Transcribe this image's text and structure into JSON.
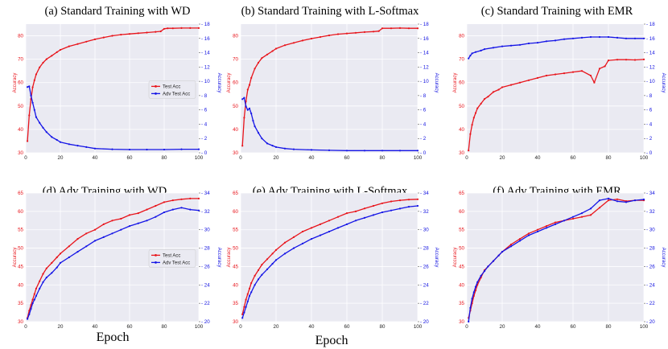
{
  "figure": {
    "x_axis_label": "Epoch"
  },
  "colors": {
    "test": "#e8141b",
    "adv": "#1515e6",
    "plot_bg": "#eaeaf2",
    "grid": "#ffffff"
  },
  "chart_data": [
    {
      "type": "line",
      "title": "(a) Standard Training with WD",
      "xlim": [
        0,
        100
      ],
      "ylim_left": [
        30,
        85
      ],
      "ylim_right": [
        0,
        18
      ],
      "xticks": [
        0,
        20,
        40,
        60,
        80,
        100
      ],
      "yticks_left": [
        30,
        40,
        50,
        60,
        70,
        80
      ],
      "yticks_right": [
        0,
        2,
        4,
        6,
        8,
        10,
        12,
        14,
        16,
        18
      ],
      "ylabel_left": "Accuracy",
      "ylabel_right": "Accuracy",
      "legend": {
        "position": "center-right",
        "entries": [
          "Test Acc",
          "Adv Test Acc"
        ]
      },
      "series": [
        {
          "name": "Test Acc",
          "axis": "left",
          "x": [
            1,
            2,
            3,
            4,
            5,
            6,
            8,
            10,
            12,
            15,
            18,
            20,
            25,
            30,
            35,
            40,
            45,
            50,
            55,
            60,
            65,
            70,
            75,
            78,
            80,
            82,
            85,
            90,
            95,
            100
          ],
          "y": [
            35,
            46,
            53,
            58,
            61,
            63.5,
            66.5,
            68.5,
            70,
            71.5,
            73,
            74,
            75.5,
            76.5,
            77.5,
            78.5,
            79.3,
            80,
            80.5,
            80.8,
            81.1,
            81.4,
            81.7,
            81.9,
            83,
            83.2,
            83.2,
            83.3,
            83.3,
            83.3
          ]
        },
        {
          "name": "Adv Test Acc",
          "axis": "right",
          "x": [
            1,
            2,
            3,
            4,
            5,
            6,
            8,
            10,
            12,
            15,
            18,
            20,
            25,
            30,
            35,
            40,
            50,
            60,
            70,
            80,
            90,
            100
          ],
          "y": [
            9.2,
            9.3,
            8,
            7,
            6,
            5,
            4.2,
            3.5,
            2.9,
            2.2,
            1.8,
            1.5,
            1.2,
            1,
            0.8,
            0.6,
            0.5,
            0.45,
            0.45,
            0.45,
            0.5,
            0.5
          ]
        }
      ]
    },
    {
      "type": "line",
      "title": "(b) Standard Training with L-Softmax",
      "xlim": [
        0,
        100
      ],
      "ylim_left": [
        30,
        85
      ],
      "ylim_right": [
        0,
        18
      ],
      "xticks": [
        0,
        20,
        40,
        60,
        80,
        100
      ],
      "yticks_left": [
        30,
        40,
        50,
        60,
        70,
        80
      ],
      "yticks_right": [
        0,
        2,
        4,
        6,
        8,
        10,
        12,
        14,
        16,
        18
      ],
      "ylabel_left": "Accuracy",
      "ylabel_right": "Accuracy",
      "series": [
        {
          "name": "Test Acc",
          "axis": "left",
          "x": [
            1,
            2,
            3,
            4,
            5,
            6,
            8,
            10,
            12,
            15,
            18,
            20,
            25,
            30,
            35,
            40,
            45,
            50,
            55,
            60,
            65,
            70,
            75,
            78,
            80,
            85,
            90,
            95,
            100
          ],
          "y": [
            33,
            45,
            52,
            57,
            59,
            62,
            66,
            68.5,
            70.5,
            72,
            73.5,
            74.5,
            76,
            77,
            78,
            78.8,
            79.5,
            80.2,
            80.7,
            81,
            81.3,
            81.6,
            81.8,
            82,
            83.2,
            83.2,
            83.3,
            83.2,
            83.2
          ]
        },
        {
          "name": "Adv Test Acc",
          "axis": "right",
          "x": [
            1,
            2,
            3,
            4,
            5,
            6,
            7,
            8,
            10,
            12,
            15,
            18,
            20,
            25,
            30,
            40,
            50,
            60,
            70,
            80,
            90,
            100
          ],
          "y": [
            7.5,
            7.7,
            6.5,
            6,
            6.2,
            5.5,
            4.5,
            3.7,
            2.8,
            2,
            1.3,
            1,
            0.8,
            0.6,
            0.5,
            0.4,
            0.35,
            0.3,
            0.3,
            0.3,
            0.3,
            0.3
          ]
        }
      ]
    },
    {
      "type": "line",
      "title": "(c) Standard Training with EMR",
      "xlim": [
        0,
        100
      ],
      "ylim_left": [
        30,
        85
      ],
      "ylim_right": [
        0,
        18
      ],
      "xticks": [
        0,
        20,
        40,
        60,
        80,
        100
      ],
      "yticks_left": [
        30,
        40,
        50,
        60,
        70,
        80
      ],
      "yticks_right": [
        0,
        2,
        4,
        6,
        8,
        10,
        12,
        14,
        16,
        18
      ],
      "ylabel_left": "Accuracy",
      "ylabel_right": "Accuracy",
      "series": [
        {
          "name": "Test Acc",
          "axis": "left",
          "x": [
            1,
            2,
            3,
            4,
            5,
            6,
            8,
            10,
            12,
            15,
            18,
            20,
            25,
            30,
            35,
            40,
            45,
            50,
            55,
            60,
            65,
            70,
            72,
            75,
            78,
            80,
            85,
            90,
            95,
            100
          ],
          "y": [
            31,
            38,
            42,
            45,
            47,
            49,
            51,
            53,
            54,
            56,
            57,
            58,
            59,
            60,
            61,
            62,
            63,
            63.5,
            64,
            64.5,
            65,
            63,
            60,
            66,
            67,
            69.5,
            69.8,
            69.8,
            69.7,
            69.9
          ]
        },
        {
          "name": "Adv Test Acc",
          "axis": "right",
          "x": [
            1,
            2,
            3,
            5,
            8,
            10,
            15,
            20,
            25,
            30,
            35,
            40,
            45,
            50,
            55,
            60,
            65,
            70,
            75,
            80,
            85,
            90,
            95,
            100
          ],
          "y": [
            13.2,
            13.6,
            13.9,
            14.1,
            14.3,
            14.5,
            14.7,
            14.9,
            15,
            15.1,
            15.3,
            15.4,
            15.6,
            15.7,
            15.9,
            16,
            16.1,
            16.2,
            16.2,
            16.2,
            16.1,
            16.0,
            16.0,
            16.0
          ]
        }
      ]
    },
    {
      "type": "line",
      "title": "(d) Adv Training with WD",
      "xlim": [
        0,
        100
      ],
      "ylim_left": [
        30,
        65
      ],
      "ylim_right": [
        20,
        34
      ],
      "xticks": [
        0,
        20,
        40,
        60,
        80,
        100
      ],
      "yticks_left": [
        30,
        35,
        40,
        45,
        50,
        55,
        60,
        65
      ],
      "yticks_right": [
        20,
        22,
        24,
        26,
        28,
        30,
        32,
        34
      ],
      "ylabel_left": "Accuracy",
      "ylabel_right": "Accuracy",
      "legend": {
        "position": "center-right",
        "entries": [
          "Test Acc",
          "Adv Test Acc"
        ]
      },
      "series": [
        {
          "name": "Test Acc",
          "axis": "left",
          "x": [
            1,
            2,
            3,
            4,
            5,
            6,
            8,
            10,
            12,
            15,
            18,
            20,
            25,
            30,
            35,
            40,
            45,
            50,
            55,
            60,
            65,
            70,
            75,
            80,
            85,
            90,
            95,
            100
          ],
          "y": [
            31,
            33,
            34.5,
            36,
            37.5,
            39,
            41,
            43,
            44.5,
            46,
            47.5,
            48.5,
            50.5,
            52.5,
            54,
            55,
            56.5,
            57.5,
            58,
            59,
            59.5,
            60.5,
            61.5,
            62.5,
            63,
            63.3,
            63.5,
            63.5
          ]
        },
        {
          "name": "Adv Test Acc",
          "axis": "right",
          "x": [
            1,
            2,
            3,
            4,
            5,
            6,
            8,
            10,
            12,
            15,
            18,
            20,
            25,
            30,
            35,
            40,
            45,
            50,
            55,
            60,
            65,
            70,
            75,
            80,
            85,
            90,
            95,
            100
          ],
          "y": [
            20.3,
            20.8,
            21.4,
            22,
            22.4,
            22.8,
            23.6,
            24.3,
            24.8,
            25.3,
            25.9,
            26.4,
            27,
            27.6,
            28.2,
            28.8,
            29.2,
            29.6,
            30,
            30.4,
            30.7,
            31,
            31.4,
            31.9,
            32.2,
            32.4,
            32.2,
            32.1
          ]
        }
      ]
    },
    {
      "type": "line",
      "title": "(e) Adv Training with L-Softmax",
      "xlim": [
        0,
        100
      ],
      "ylim_left": [
        30,
        65
      ],
      "ylim_right": [
        20,
        34
      ],
      "xticks": [
        0,
        20,
        40,
        60,
        80,
        100
      ],
      "yticks_left": [
        30,
        35,
        40,
        45,
        50,
        55,
        60,
        65
      ],
      "yticks_right": [
        20,
        22,
        24,
        26,
        28,
        30,
        32,
        34
      ],
      "ylabel_left": "Accuracy",
      "ylabel_right": "Accuracy",
      "series": [
        {
          "name": "Test Acc",
          "axis": "left",
          "x": [
            1,
            2,
            3,
            4,
            5,
            6,
            8,
            10,
            12,
            15,
            18,
            20,
            25,
            30,
            35,
            40,
            45,
            50,
            55,
            60,
            65,
            70,
            75,
            80,
            85,
            90,
            95,
            100
          ],
          "y": [
            32,
            34,
            36,
            37.5,
            39,
            40.5,
            42.5,
            44,
            45.5,
            47,
            48.5,
            49.5,
            51.5,
            53,
            54.5,
            55.5,
            56.5,
            57.5,
            58.5,
            59.5,
            60,
            60.8,
            61.5,
            62.2,
            62.7,
            63,
            63.2,
            63.3
          ]
        },
        {
          "name": "Adv Test Acc",
          "axis": "right",
          "x": [
            1,
            2,
            3,
            4,
            5,
            6,
            8,
            10,
            12,
            15,
            18,
            20,
            25,
            30,
            35,
            40,
            45,
            50,
            55,
            60,
            65,
            70,
            75,
            80,
            85,
            90,
            95,
            100
          ],
          "y": [
            20.4,
            21,
            21.6,
            22.2,
            22.8,
            23.2,
            24,
            24.6,
            25.1,
            25.7,
            26.3,
            26.7,
            27.4,
            28,
            28.5,
            29,
            29.4,
            29.8,
            30.2,
            30.6,
            31,
            31.3,
            31.6,
            31.9,
            32.1,
            32.3,
            32.5,
            32.6
          ]
        }
      ]
    },
    {
      "type": "line",
      "title": "(f) Adv Training with EMR",
      "xlim": [
        0,
        100
      ],
      "ylim_left": [
        30,
        65
      ],
      "ylim_right": [
        20,
        34
      ],
      "xticks": [
        0,
        20,
        40,
        60,
        80,
        100
      ],
      "yticks_left": [
        30,
        35,
        40,
        45,
        50,
        55,
        60,
        65
      ],
      "yticks_right": [
        20,
        22,
        24,
        26,
        28,
        30,
        32,
        34
      ],
      "ylabel_left": "Accuracy",
      "ylabel_right": "Accuracy",
      "series": [
        {
          "name": "Test Acc",
          "axis": "left",
          "x": [
            1,
            2,
            3,
            4,
            5,
            6,
            8,
            10,
            12,
            15,
            18,
            20,
            25,
            30,
            35,
            40,
            45,
            50,
            55,
            60,
            65,
            70,
            75,
            80,
            85,
            90,
            95,
            100
          ],
          "y": [
            31,
            33,
            35,
            37,
            38.5,
            40,
            42,
            44,
            45,
            46.5,
            48,
            49,
            51,
            52.5,
            54,
            55,
            56,
            57,
            57.5,
            58,
            58.5,
            59,
            61,
            63,
            63.3,
            62.8,
            63,
            63
          ]
        },
        {
          "name": "Adv Test Acc",
          "axis": "right",
          "x": [
            1,
            2,
            3,
            4,
            5,
            6,
            8,
            10,
            12,
            15,
            18,
            20,
            25,
            30,
            35,
            40,
            45,
            50,
            55,
            60,
            65,
            70,
            75,
            80,
            85,
            90,
            95,
            100
          ],
          "y": [
            20,
            21.5,
            22.5,
            23.2,
            23.8,
            24.3,
            25,
            25.5,
            26,
            26.6,
            27.2,
            27.6,
            28.2,
            28.8,
            29.4,
            29.8,
            30.2,
            30.6,
            31,
            31.4,
            31.8,
            32.3,
            33.2,
            33.4,
            33.1,
            33,
            33.2,
            33.3
          ]
        }
      ]
    }
  ]
}
